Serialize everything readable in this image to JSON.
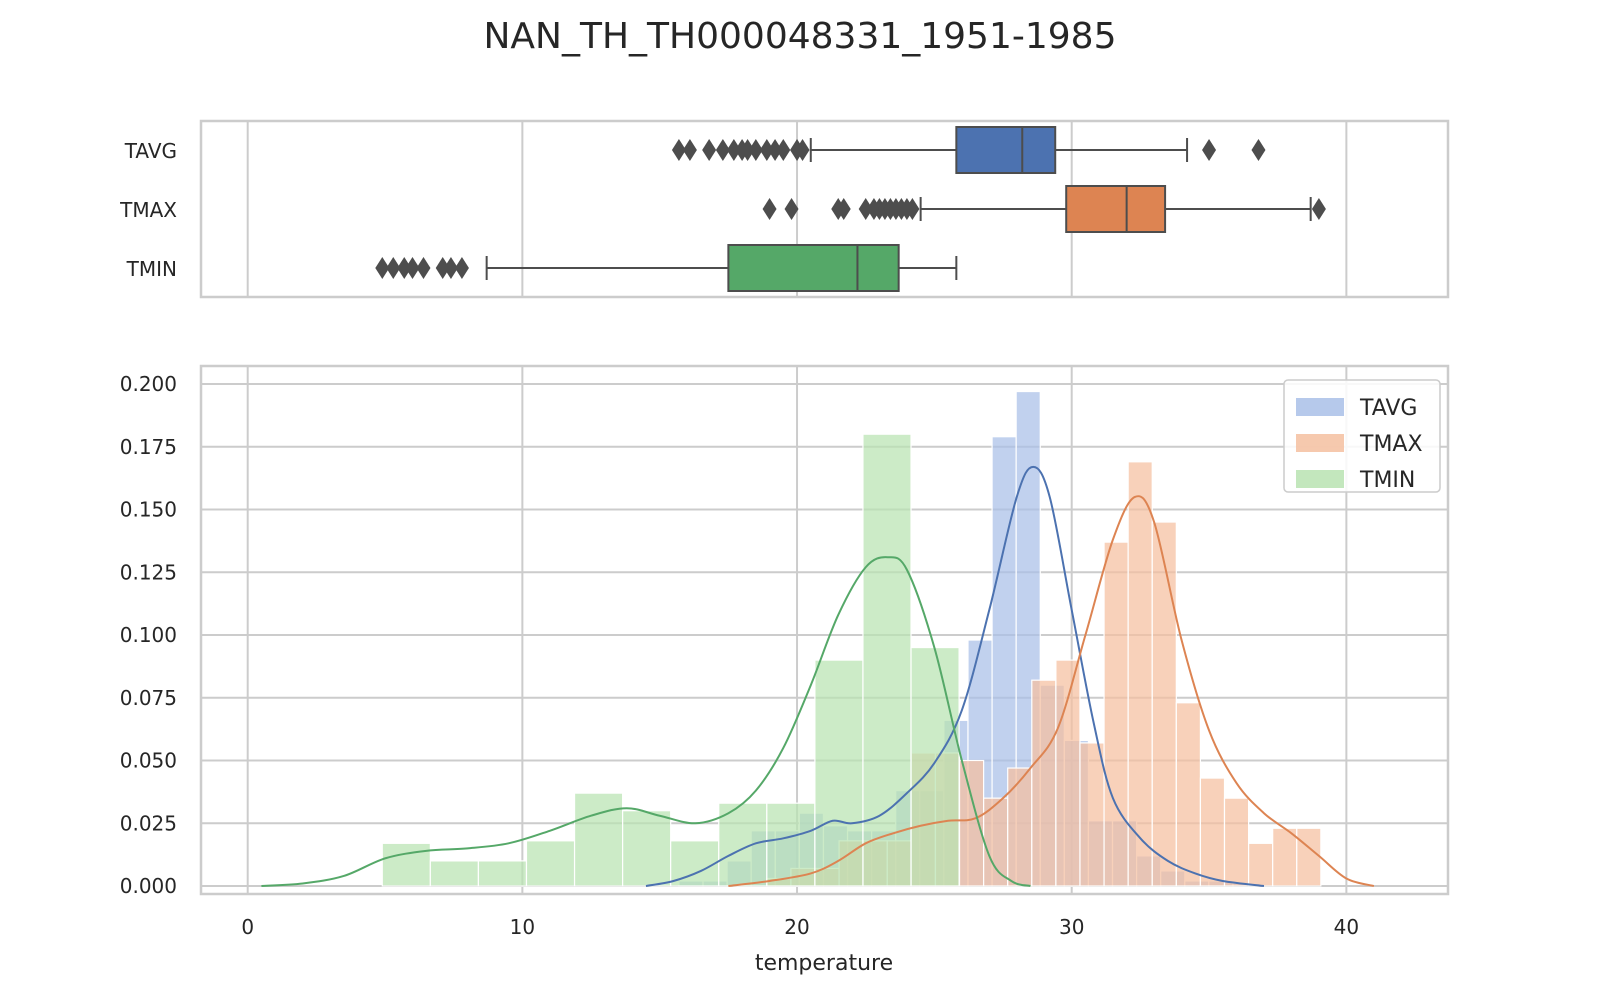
{
  "chart_data": {
    "type": "histogram+boxplot",
    "title": "NAN_TH_TH000048331_1951-1985",
    "xlabel": "temperature",
    "ylabel": "",
    "xlim": [
      -1.7,
      43.7
    ],
    "ylim": [
      0,
      0.2
    ],
    "xticks": [
      "0",
      "10",
      "20",
      "30",
      "40"
    ],
    "xtick_values": [
      0,
      10,
      20,
      30,
      40
    ],
    "yticks": [
      "0.000",
      "0.025",
      "0.050",
      "0.075",
      "0.100",
      "0.125",
      "0.150",
      "0.175",
      "0.200"
    ],
    "ytick_values": [
      0,
      0.025,
      0.05,
      0.075,
      0.1,
      0.125,
      0.15,
      0.175,
      0.2
    ],
    "grid": true,
    "legend_position": "top-right",
    "series": [
      {
        "name": "TAVG",
        "color": "#4c72b0",
        "hist_color": "#a9bfe8",
        "bin_width": 0.877,
        "bins": [
          {
            "x0": 15.7,
            "y": 0.002
          },
          {
            "x0": 16.577,
            "y": 0.002
          },
          {
            "x0": 17.454,
            "y": 0.01
          },
          {
            "x0": 18.331,
            "y": 0.022
          },
          {
            "x0": 19.208,
            "y": 0.022
          },
          {
            "x0": 20.085,
            "y": 0.029
          },
          {
            "x0": 20.962,
            "y": 0.024
          },
          {
            "x0": 21.839,
            "y": 0.022
          },
          {
            "x0": 22.716,
            "y": 0.022
          },
          {
            "x0": 23.593,
            "y": 0.038
          },
          {
            "x0": 24.47,
            "y": 0.038
          },
          {
            "x0": 25.347,
            "y": 0.066
          },
          {
            "x0": 26.224,
            "y": 0.098
          },
          {
            "x0": 27.101,
            "y": 0.179
          },
          {
            "x0": 27.978,
            "y": 0.197
          },
          {
            "x0": 28.855,
            "y": 0.08
          },
          {
            "x0": 29.732,
            "y": 0.058
          },
          {
            "x0": 30.609,
            "y": 0.026
          },
          {
            "x0": 31.486,
            "y": 0.026
          },
          {
            "x0": 32.363,
            "y": 0.012
          },
          {
            "x0": 33.24,
            "y": 0.006
          },
          {
            "x0": 34.117,
            "y": 0.002
          },
          {
            "x0": 34.994,
            "y": 0.002
          },
          {
            "x0": 35.871,
            "y": 0.001
          }
        ],
        "kde": [
          [
            14.5,
            0.0
          ],
          [
            15.5,
            0.002
          ],
          [
            16.5,
            0.006
          ],
          [
            17.5,
            0.012
          ],
          [
            18.5,
            0.017
          ],
          [
            19.5,
            0.019
          ],
          [
            20.5,
            0.022
          ],
          [
            21.3,
            0.026
          ],
          [
            22.0,
            0.025
          ],
          [
            23.0,
            0.028
          ],
          [
            24.0,
            0.037
          ],
          [
            25.0,
            0.049
          ],
          [
            26.0,
            0.07
          ],
          [
            27.0,
            0.11
          ],
          [
            28.0,
            0.155
          ],
          [
            28.6,
            0.167
          ],
          [
            29.2,
            0.155
          ],
          [
            30.0,
            0.11
          ],
          [
            30.8,
            0.065
          ],
          [
            31.5,
            0.035
          ],
          [
            32.5,
            0.019
          ],
          [
            33.5,
            0.01
          ],
          [
            34.5,
            0.005
          ],
          [
            35.5,
            0.002
          ],
          [
            37.0,
            0.0
          ]
        ],
        "box": {
          "whisker_low": 20.5,
          "q1": 25.8,
          "median": 28.2,
          "q3": 29.4,
          "whisker_high": 34.2,
          "outliers": [
            15.7,
            16.1,
            16.8,
            17.3,
            17.7,
            18.0,
            18.2,
            18.5,
            18.9,
            19.2,
            19.5,
            20.0,
            20.2,
            35.0,
            36.8
          ]
        }
      },
      {
        "name": "TMAX",
        "color": "#dd8452",
        "hist_color": "#f5bfa0",
        "bin_width": 0.877,
        "bins": [
          {
            "x0": 18.9,
            "y": 0.003
          },
          {
            "x0": 19.777,
            "y": 0.007
          },
          {
            "x0": 20.654,
            "y": 0.007
          },
          {
            "x0": 21.531,
            "y": 0.018
          },
          {
            "x0": 22.408,
            "y": 0.018
          },
          {
            "x0": 23.285,
            "y": 0.018
          },
          {
            "x0": 24.162,
            "y": 0.053
          },
          {
            "x0": 25.039,
            "y": 0.053
          },
          {
            "x0": 25.916,
            "y": 0.05
          },
          {
            "x0": 26.793,
            "y": 0.035
          },
          {
            "x0": 27.67,
            "y": 0.047
          },
          {
            "x0": 28.547,
            "y": 0.082
          },
          {
            "x0": 29.424,
            "y": 0.09
          },
          {
            "x0": 30.301,
            "y": 0.057
          },
          {
            "x0": 31.178,
            "y": 0.137
          },
          {
            "x0": 32.055,
            "y": 0.169
          },
          {
            "x0": 32.932,
            "y": 0.145
          },
          {
            "x0": 33.809,
            "y": 0.073
          },
          {
            "x0": 34.686,
            "y": 0.043
          },
          {
            "x0": 35.563,
            "y": 0.035
          },
          {
            "x0": 36.44,
            "y": 0.017
          },
          {
            "x0": 37.317,
            "y": 0.023
          },
          {
            "x0": 38.194,
            "y": 0.023
          }
        ],
        "kde": [
          [
            17.5,
            0.0
          ],
          [
            19.0,
            0.002
          ],
          [
            20.5,
            0.005
          ],
          [
            21.5,
            0.01
          ],
          [
            22.5,
            0.017
          ],
          [
            23.5,
            0.021
          ],
          [
            24.5,
            0.024
          ],
          [
            25.5,
            0.026
          ],
          [
            26.5,
            0.027
          ],
          [
            27.5,
            0.035
          ],
          [
            28.5,
            0.047
          ],
          [
            29.5,
            0.063
          ],
          [
            30.5,
            0.1
          ],
          [
            31.5,
            0.138
          ],
          [
            32.3,
            0.155
          ],
          [
            33.0,
            0.145
          ],
          [
            34.0,
            0.098
          ],
          [
            35.0,
            0.062
          ],
          [
            36.0,
            0.041
          ],
          [
            37.0,
            0.029
          ],
          [
            38.0,
            0.021
          ],
          [
            39.0,
            0.012
          ],
          [
            40.0,
            0.003
          ],
          [
            41.0,
            0.0
          ]
        ],
        "box": {
          "whisker_low": 24.5,
          "q1": 29.8,
          "median": 32.0,
          "q3": 33.4,
          "whisker_high": 38.7,
          "outliers": [
            19.0,
            19.8,
            21.5,
            21.7,
            22.5,
            22.8,
            23.0,
            23.2,
            23.4,
            23.6,
            23.8,
            24.0,
            24.2,
            39.0
          ]
        }
      },
      {
        "name": "TMIN",
        "color": "#55a868",
        "hist_color": "#b8e3b2",
        "bin_width": 1.75,
        "bins": [
          {
            "x0": 4.9,
            "y": 0.017
          },
          {
            "x0": 6.65,
            "y": 0.01
          },
          {
            "x0": 8.4,
            "y": 0.01
          },
          {
            "x0": 10.15,
            "y": 0.018
          },
          {
            "x0": 11.9,
            "y": 0.037
          },
          {
            "x0": 13.65,
            "y": 0.03
          },
          {
            "x0": 15.4,
            "y": 0.018
          },
          {
            "x0": 17.15,
            "y": 0.033
          },
          {
            "x0": 18.9,
            "y": 0.033
          },
          {
            "x0": 20.65,
            "y": 0.09
          },
          {
            "x0": 22.4,
            "y": 0.18
          },
          {
            "x0": 24.15,
            "y": 0.095
          }
        ],
        "kde": [
          [
            0.5,
            0.0
          ],
          [
            2.0,
            0.001
          ],
          [
            3.5,
            0.004
          ],
          [
            5.0,
            0.011
          ],
          [
            6.5,
            0.014
          ],
          [
            8.0,
            0.015
          ],
          [
            9.5,
            0.017
          ],
          [
            11.0,
            0.022
          ],
          [
            12.5,
            0.028
          ],
          [
            13.8,
            0.031
          ],
          [
            15.0,
            0.028
          ],
          [
            16.3,
            0.025
          ],
          [
            17.5,
            0.029
          ],
          [
            18.5,
            0.038
          ],
          [
            19.5,
            0.055
          ],
          [
            20.5,
            0.08
          ],
          [
            21.5,
            0.108
          ],
          [
            22.5,
            0.127
          ],
          [
            23.3,
            0.131
          ],
          [
            24.0,
            0.126
          ],
          [
            25.0,
            0.095
          ],
          [
            26.0,
            0.05
          ],
          [
            27.0,
            0.012
          ],
          [
            27.8,
            0.002
          ],
          [
            28.5,
            0.0
          ]
        ],
        "box": {
          "whisker_low": 8.7,
          "q1": 17.5,
          "median": 22.2,
          "q3": 23.7,
          "whisker_high": 25.8,
          "outliers": [
            4.9,
            5.3,
            5.7,
            6.0,
            6.4,
            7.1,
            7.4,
            7.8
          ]
        }
      }
    ]
  }
}
